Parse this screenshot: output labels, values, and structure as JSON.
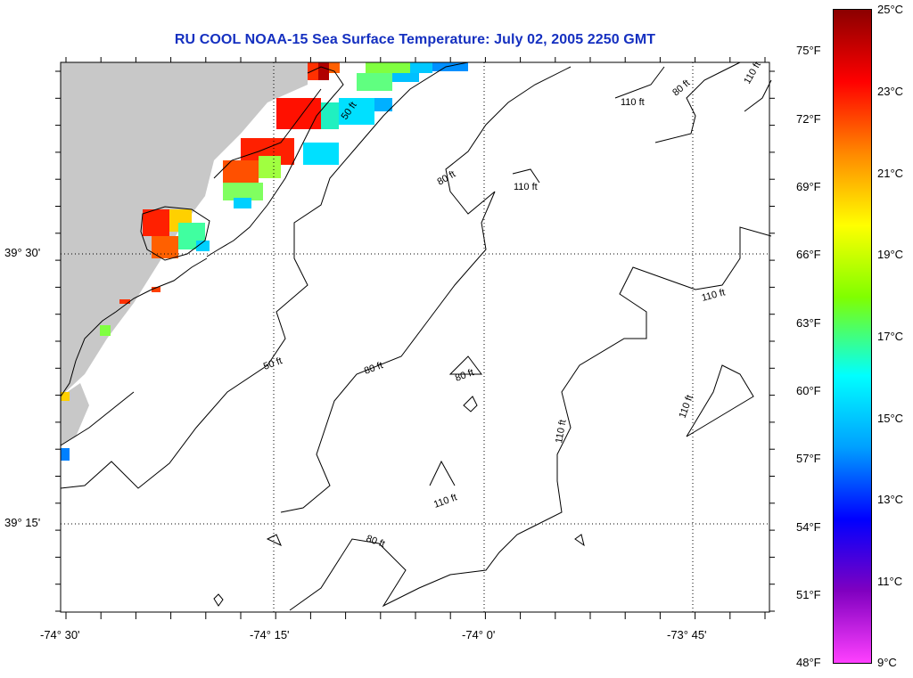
{
  "title": "RU COOL  NOAA-15  Sea Surface Temperature:  July 02, 2005 2250 GMT",
  "map": {
    "lat_labels": [
      "39° 30'",
      "39° 15'"
    ],
    "lon_labels": [
      "-74° 30'",
      "-74° 15'",
      "-74° 0'",
      "-73° 45'"
    ],
    "contour_labels": [
      "50 ft",
      "80 ft",
      "110 ft"
    ],
    "land_color": "#c8c8c8",
    "sea_color": "#ffffff"
  },
  "colorbar": {
    "celsius_labels": [
      "25°C",
      "23°C",
      "21°C",
      "19°C",
      "17°C",
      "15°C",
      "13°C",
      "11°C",
      "9°C"
    ],
    "fahrenheit_labels": [
      "75°F",
      "72°F",
      "69°F",
      "66°F",
      "63°F",
      "60°F",
      "57°F",
      "54°F",
      "51°F",
      "48°F"
    ],
    "colors": [
      "#8b0000",
      "#ff0000",
      "#ff8800",
      "#ffff00",
      "#80ff00",
      "#00ffff",
      "#00a0ff",
      "#0000ff",
      "#8000c0",
      "#ff40ff"
    ]
  }
}
